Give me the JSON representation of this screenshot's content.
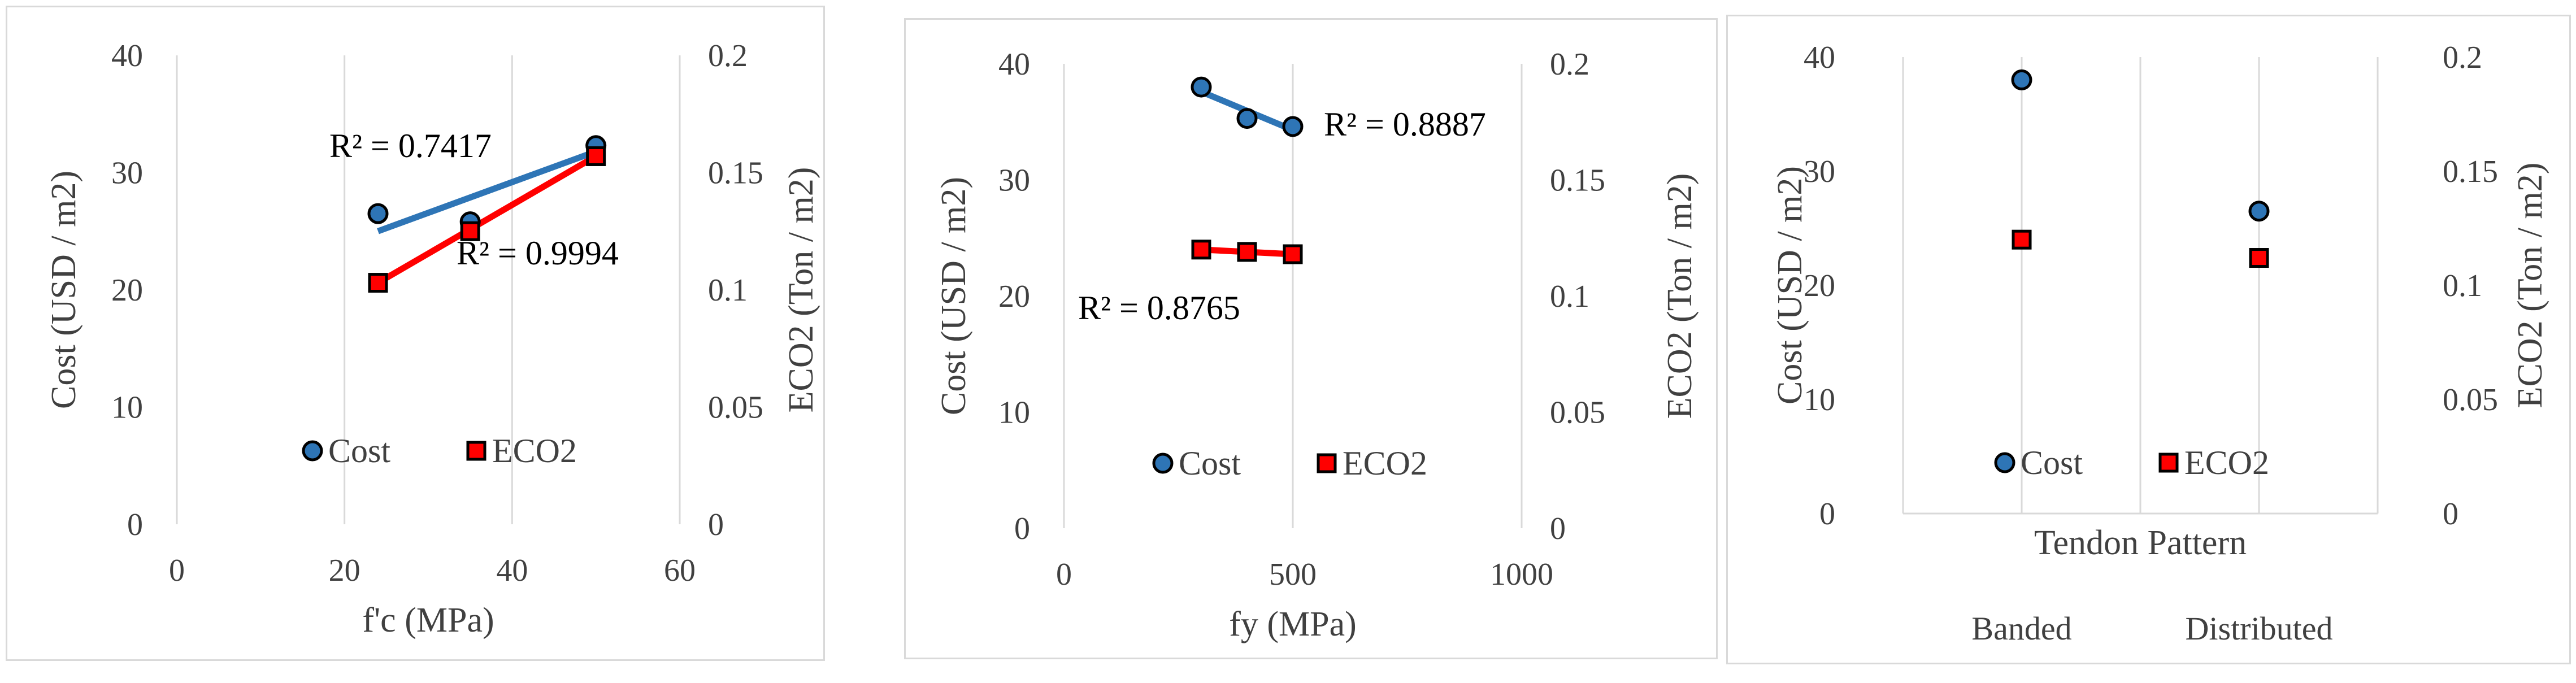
{
  "chart_data": [
    {
      "type": "scatter",
      "xlabel": "f'c (MPa)",
      "ylabel": "Cost (USD / m2)",
      "y2label": "ECO2 (Ton / m2)",
      "xlim": [
        0,
        60
      ],
      "xticks": [
        "0",
        "20",
        "40",
        "60"
      ],
      "ylim": [
        0,
        40
      ],
      "yticks": [
        "0",
        "10",
        "20",
        "30",
        "40"
      ],
      "y2lim": [
        0,
        0.2
      ],
      "y2ticks": [
        "0",
        "0.05",
        "0.1",
        "0.15",
        "0.2"
      ],
      "grid": "vertical",
      "series": [
        {
          "name": "Cost",
          "axis": "left",
          "marker": "circle",
          "color": "#2e75b6",
          "trend_color": "#2e75b6",
          "x": [
            24,
            35,
            50
          ],
          "y": [
            26.5,
            25.8,
            32.3
          ],
          "trend": [
            25.0,
            31.8
          ],
          "r2": "R² = 0.7417"
        },
        {
          "name": "ECO2",
          "axis": "right",
          "marker": "square",
          "color": "#ff0000",
          "trend_color": "#ff0000",
          "x": [
            24,
            35,
            50
          ],
          "y": [
            0.103,
            0.125,
            0.157
          ],
          "trend": [
            0.103,
            0.157
          ],
          "r2": "R² = 0.9994"
        }
      ],
      "legend": [
        "Cost",
        "ECO2"
      ],
      "legend_position": "bottom-center"
    },
    {
      "type": "scatter",
      "xlabel": "fy  (MPa)",
      "ylabel": "Cost (USD / m2)",
      "y2label": "ECO2 (Ton / m2)",
      "xlim": [
        0,
        1000
      ],
      "xticks": [
        "0",
        "500",
        "1000"
      ],
      "ylim": [
        0,
        40
      ],
      "yticks": [
        "0",
        "10",
        "20",
        "30",
        "40"
      ],
      "y2lim": [
        0,
        0.2
      ],
      "y2ticks": [
        "0",
        "0.05",
        "0.1",
        "0.15",
        "0.2"
      ],
      "grid": "vertical",
      "series": [
        {
          "name": "Cost",
          "axis": "left",
          "marker": "circle",
          "color": "#2e75b6",
          "trend_color": "#2e75b6",
          "x": [
            300,
            400,
            500
          ],
          "y": [
            38.0,
            35.3,
            34.6
          ],
          "trend": [
            37.6,
            34.3
          ],
          "r2": "R² = 0.8887"
        },
        {
          "name": "ECO2",
          "axis": "right",
          "marker": "square",
          "color": "#ff0000",
          "trend_color": "#ff0000",
          "x": [
            300,
            400,
            500
          ],
          "y": [
            0.12,
            0.119,
            0.118
          ],
          "trend": [
            0.12,
            0.118
          ],
          "r2": "R² = 0.8765"
        }
      ],
      "legend": [
        "Cost",
        "ECO2"
      ],
      "legend_position": "bottom-center"
    },
    {
      "type": "scatter",
      "xlabel": "Tendon Pattern",
      "ylabel": "Cost (USD / m2)",
      "y2label": "ECO2 (Ton / m2)",
      "categories": [
        "Banded",
        "Distributed"
      ],
      "ylim": [
        0,
        40
      ],
      "yticks": [
        "0",
        "10",
        "20",
        "30",
        "40"
      ],
      "y2lim": [
        0,
        0.2
      ],
      "y2ticks": [
        "0",
        "0.05",
        "0.1",
        "0.15",
        "0.2"
      ],
      "grid": "vertical",
      "series": [
        {
          "name": "Cost",
          "axis": "left",
          "marker": "circle",
          "color": "#2e75b6",
          "y": [
            38.0,
            26.5
          ]
        },
        {
          "name": "ECO2",
          "axis": "right",
          "marker": "square",
          "color": "#ff0000",
          "y": [
            0.12,
            0.112
          ]
        }
      ],
      "legend": [
        "Cost",
        "ECO2"
      ],
      "legend_position": "bottom-center"
    }
  ]
}
